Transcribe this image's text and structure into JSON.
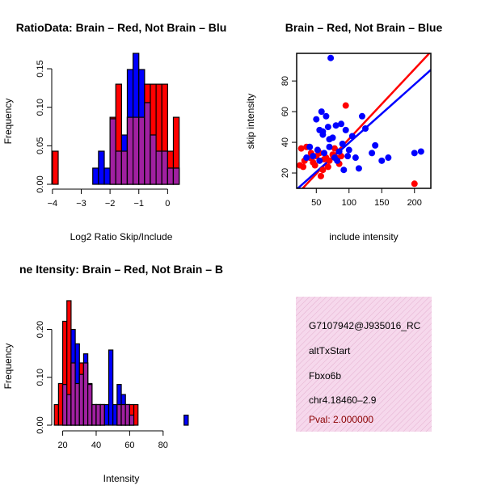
{
  "colors": {
    "red": "#ff0000",
    "blue": "#0000ff",
    "purple": "#a020a0",
    "text_red": "#8b0000",
    "info_bg": "#f6d8ec"
  },
  "chart_data": [
    {
      "type": "histogram",
      "title": "RatioData: Brain – Red, Not Brain – Blu",
      "xlabel": "Log2 Ratio Skip/Include",
      "ylabel": "Frequency",
      "xlim": [
        -4.1,
        0.7
      ],
      "ylim": [
        0,
        0.17
      ],
      "xticks": [
        -4,
        -3,
        -2,
        -1,
        0
      ],
      "yticks": [
        0.0,
        0.05,
        0.1,
        0.15
      ],
      "ytick_labels": [
        "0.00",
        "0.05",
        "0.10",
        "0.15"
      ],
      "bin_edges": [
        -4.0,
        -3.8,
        -3.6,
        -3.4,
        -3.2,
        -3.0,
        -2.8,
        -2.6,
        -2.4,
        -2.2,
        -2.0,
        -1.8,
        -1.6,
        -1.4,
        -1.2,
        -1.0,
        -0.8,
        -0.6,
        -0.4,
        -0.2,
        0.0,
        0.2,
        0.4
      ],
      "series": [
        {
          "name": "Brain",
          "color": "red",
          "values": [
            0.043,
            0,
            0,
            0,
            0,
            0,
            0,
            0,
            0,
            0,
            0.087,
            0.13,
            0.043,
            0.087,
            0.087,
            0.087,
            0.13,
            0.13,
            0.13,
            0.13,
            0.043,
            0.087
          ]
        },
        {
          "name": "Not Brain",
          "color": "blue",
          "values": [
            0,
            0,
            0,
            0,
            0,
            0,
            0,
            0.021,
            0.043,
            0.021,
            0.085,
            0.043,
            0.064,
            0.149,
            0.17,
            0.149,
            0.106,
            0.064,
            0.043,
            0.043,
            0.021,
            0.021
          ]
        }
      ]
    },
    {
      "type": "scatter",
      "title": "Brain – Red, Not Brain – Blue",
      "xlabel": "include intensity",
      "ylabel": "skip intensity",
      "xlim": [
        20,
        225
      ],
      "ylim": [
        10,
        98
      ],
      "xticks": [
        50,
        100,
        150,
        200
      ],
      "yticks": [
        20,
        40,
        60,
        80
      ],
      "series": [
        {
          "name": "Brain",
          "color": "red",
          "x": [
            25,
            27,
            30,
            32,
            35,
            40,
            42,
            45,
            48,
            50,
            52,
            55,
            57,
            60,
            62,
            65,
            68,
            70,
            75,
            78,
            80,
            85,
            88,
            95,
            200
          ],
          "y": [
            25,
            36,
            24,
            28,
            37,
            30,
            33,
            27,
            25,
            31,
            35,
            33,
            18,
            22,
            29,
            30,
            24,
            28,
            32,
            36,
            30,
            26,
            31,
            64,
            13
          ]
        },
        {
          "name": "Not Brain",
          "color": "blue",
          "x": [
            35,
            40,
            45,
            50,
            52,
            55,
            58,
            60,
            62,
            65,
            68,
            70,
            72,
            75,
            78,
            80,
            82,
            85,
            88,
            90,
            92,
            95,
            98,
            100,
            105,
            110,
            115,
            120,
            125,
            135,
            140,
            150,
            160,
            200,
            210,
            70,
            60,
            55
          ],
          "y": [
            30,
            37,
            31,
            55,
            35,
            48,
            60,
            45,
            33,
            57,
            50,
            37,
            95,
            43,
            30,
            51,
            28,
            34,
            52,
            39,
            22,
            48,
            31,
            35,
            44,
            30,
            23,
            57,
            49,
            33,
            38,
            28,
            30,
            33,
            34,
            42,
            47,
            28
          ]
        }
      ],
      "lines": [
        {
          "name": "Brain fit",
          "color": "red",
          "intercept": -3.3,
          "slope": 0.455
        },
        {
          "name": "Not Brain fit",
          "color": "blue",
          "intercept": 1.7,
          "slope": 0.38
        }
      ]
    },
    {
      "type": "histogram",
      "title": "ne Itensity: Brain – Red, Not Brain – B",
      "xlabel": "Intensity",
      "ylabel": "Frequency",
      "xlim": [
        12,
        97
      ],
      "ylim": [
        0,
        0.26
      ],
      "xticks": [
        20,
        40,
        60,
        80
      ],
      "yticks": [
        0.0,
        0.1,
        0.2
      ],
      "ytick_labels": [
        "0.00",
        "0.10",
        "0.20"
      ],
      "bin_edges": [
        15,
        17.5,
        20,
        22.5,
        25,
        27.5,
        30,
        32.5,
        35,
        37.5,
        40,
        42.5,
        45,
        47.5,
        50,
        52.5,
        55,
        57.5,
        60,
        62.5,
        65,
        92.5,
        95
      ],
      "series": [
        {
          "name": "Brain",
          "color": "red",
          "values": [
            0.043,
            0.087,
            0.217,
            0.26,
            0.13,
            0.087,
            0.13,
            0.13,
            0.087,
            0.043,
            0.043,
            0.043,
            0,
            0,
            0,
            0.043,
            0.043,
            0.043,
            0.043,
            0.043,
            0,
            0
          ]
        },
        {
          "name": "Not Brain",
          "color": "blue",
          "values": [
            0,
            0,
            0.085,
            0.064,
            0.2,
            0.17,
            0.106,
            0.149,
            0.085,
            0.043,
            0.043,
            0.043,
            0.043,
            0.157,
            0.043,
            0.085,
            0.064,
            0.043,
            0.021,
            0,
            0,
            0.021
          ]
        }
      ]
    }
  ],
  "info_panel": {
    "id": "G7107942@J935016_RC",
    "event_type": "altTxStart",
    "gene": "Fbxo6b",
    "locus": "chr4.18460–2.9",
    "pval": "Pval: 2.000000"
  }
}
